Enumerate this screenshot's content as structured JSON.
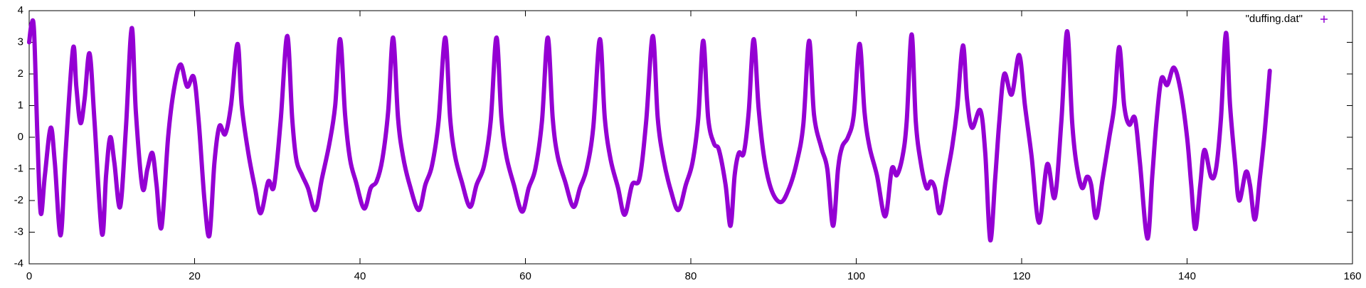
{
  "chart_data": {
    "type": "line",
    "x": [
      0,
      0.3,
      0.6,
      1.0,
      1.4,
      1.9,
      2.6,
      3.1,
      3.8,
      4.4,
      5.3,
      5.7,
      6.2,
      6.7,
      7.3,
      7.9,
      8.8,
      9.3,
      9.8,
      10.3,
      11.0,
      11.7,
      12.4,
      12.9,
      13.7,
      14.3,
      14.9,
      15.4,
      16.0,
      16.8,
      17.5,
      18.3,
      19.1,
      19.9,
      20.5,
      21.2,
      21.8,
      22.4,
      23.0,
      23.7,
      24.4,
      25.2,
      25.7,
      26.5,
      27.3,
      28.0,
      28.9,
      29.6,
      30.4,
      31.2,
      31.8,
      32.3,
      33.0,
      33.7,
      34.6,
      35.4,
      36.3,
      37.0,
      37.6,
      38.2,
      38.8,
      39.5,
      40.5,
      41.3,
      42.0,
      42.7,
      43.4,
      44.0,
      44.6,
      45.2,
      46.0,
      47.1,
      47.9,
      48.7,
      49.5,
      50.3,
      50.9,
      51.5,
      52.3,
      53.3,
      54.1,
      55.0,
      55.8,
      56.5,
      57.1,
      57.7,
      58.6,
      59.6,
      60.4,
      61.2,
      62.0,
      62.7,
      63.3,
      63.9,
      64.8,
      65.8,
      66.6,
      67.4,
      68.2,
      69.0,
      69.6,
      70.3,
      71.2,
      72.0,
      72.9,
      73.8,
      74.6,
      75.4,
      76.0,
      76.7,
      77.6,
      78.5,
      79.4,
      80.2,
      80.9,
      81.5,
      82.1,
      82.8,
      83.4,
      84.2,
      84.8,
      85.3,
      85.8,
      86.4,
      87.0,
      87.6,
      88.2,
      88.9,
      89.8,
      90.9,
      91.9,
      92.8,
      93.6,
      94.3,
      94.9,
      95.8,
      96.5,
      97.2,
      97.8,
      98.3,
      99.0,
      99.7,
      100.4,
      101.0,
      101.6,
      102.5,
      103.5,
      104.3,
      104.9,
      105.6,
      106.1,
      106.7,
      107.2,
      107.8,
      108.5,
      109.0,
      109.5,
      110.1,
      110.9,
      111.6,
      112.2,
      112.9,
      113.4,
      114.0,
      115.0,
      115.6,
      116.2,
      116.8,
      117.3,
      117.9,
      118.8,
      119.7,
      120.4,
      121.2,
      122.1,
      123.1,
      124.0,
      124.8,
      125.5,
      126.1,
      126.6,
      127.3,
      127.9,
      128.4,
      129.0,
      129.8,
      130.6,
      131.2,
      131.8,
      132.4,
      133.0,
      133.7,
      134.3,
      135.2,
      135.8,
      136.3,
      136.9,
      137.6,
      138.4,
      139.2,
      140.0,
      140.5,
      141.0,
      141.6,
      142.1,
      142.9,
      143.5,
      144.1,
      144.7,
      145.2,
      145.8,
      146.3,
      147.1,
      147.6,
      148.2,
      148.8,
      149.4,
      150.0
    ],
    "series": [
      {
        "name": "\"duffing.dat\"",
        "color": "#9400d3",
        "values": [
          3.0,
          3.6,
          3.3,
          0.0,
          -2.4,
          -1.2,
          0.3,
          -0.8,
          -3.1,
          -0.5,
          2.8,
          1.6,
          0.45,
          1.2,
          2.65,
          0.5,
          -3.05,
          -1.2,
          0.0,
          -0.8,
          -2.2,
          0.3,
          3.45,
          0.8,
          -1.6,
          -1.0,
          -0.5,
          -1.5,
          -2.85,
          0.0,
          1.5,
          2.3,
          1.6,
          1.9,
          0.5,
          -2.0,
          -3.1,
          -0.8,
          0.35,
          0.1,
          1.0,
          2.95,
          1.0,
          -0.5,
          -1.6,
          -2.4,
          -1.4,
          -1.55,
          0.5,
          3.2,
          0.6,
          -0.7,
          -1.2,
          -1.6,
          -2.3,
          -1.3,
          -0.2,
          1.0,
          3.1,
          0.7,
          -0.7,
          -1.4,
          -2.25,
          -1.6,
          -1.4,
          -0.7,
          0.8,
          3.15,
          0.6,
          -0.6,
          -1.5,
          -2.3,
          -1.5,
          -0.9,
          0.5,
          3.15,
          0.6,
          -0.6,
          -1.4,
          -2.2,
          -1.5,
          -0.9,
          0.5,
          3.15,
          0.6,
          -0.6,
          -1.5,
          -2.35,
          -1.6,
          -1.0,
          0.5,
          3.15,
          0.6,
          -0.6,
          -1.4,
          -2.2,
          -1.6,
          -1.0,
          0.3,
          3.1,
          0.6,
          -0.7,
          -1.6,
          -2.45,
          -1.5,
          -1.3,
          0.5,
          3.2,
          0.6,
          -0.7,
          -1.7,
          -2.3,
          -1.5,
          -0.8,
          0.6,
          3.05,
          0.6,
          -0.2,
          -0.4,
          -1.5,
          -2.8,
          -1.2,
          -0.5,
          -0.5,
          0.8,
          3.1,
          0.9,
          -0.7,
          -1.7,
          -2.05,
          -1.6,
          -0.8,
          0.4,
          3.05,
          0.7,
          -0.35,
          -1.0,
          -2.8,
          -1.0,
          -0.3,
          0.0,
          0.7,
          2.95,
          0.8,
          -0.3,
          -1.2,
          -2.5,
          -1.0,
          -1.2,
          -0.6,
          0.5,
          3.25,
          0.5,
          -0.8,
          -1.6,
          -1.4,
          -1.6,
          -2.4,
          -1.3,
          -0.3,
          0.9,
          2.9,
          1.2,
          0.3,
          0.85,
          -0.5,
          -3.25,
          -1.3,
          0.5,
          2.0,
          1.35,
          2.6,
          1.0,
          -0.6,
          -2.7,
          -0.85,
          -1.9,
          0.5,
          3.35,
          0.5,
          -0.8,
          -1.6,
          -1.25,
          -1.5,
          -2.55,
          -1.3,
          0.0,
          1.0,
          2.85,
          1.0,
          0.4,
          0.6,
          -0.8,
          -3.2,
          -1.2,
          0.5,
          1.85,
          1.65,
          2.2,
          1.5,
          0.0,
          -1.5,
          -2.9,
          -1.5,
          -0.4,
          -1.25,
          -1.0,
          0.6,
          3.3,
          1.0,
          -0.8,
          -2.0,
          -1.1,
          -1.5,
          -2.6,
          -1.3,
          0.2,
          2.1
        ]
      }
    ],
    "xlim": [
      0,
      160
    ],
    "xticks": [
      0,
      20,
      40,
      60,
      80,
      100,
      120,
      140,
      160
    ],
    "ylim": [
      -4,
      4
    ],
    "yticks": [
      -4,
      -3,
      -2,
      -1,
      0,
      1,
      2,
      3,
      4
    ],
    "legend": "top-right"
  }
}
